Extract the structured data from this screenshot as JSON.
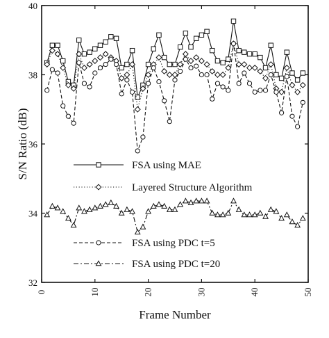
{
  "chart_data": {
    "type": "line",
    "xlabel": "Frame Number",
    "ylabel": "S/N Ratio (dB)",
    "xlim": [
      0,
      50
    ],
    "ylim": [
      32,
      40
    ],
    "x_ticks": [
      0,
      10,
      20,
      30,
      40,
      50
    ],
    "y_ticks": [
      32,
      34,
      36,
      38,
      40
    ],
    "legend_position": "lower-left (inside plot)",
    "grid": false,
    "series": [
      {
        "name": "FSA using MAE",
        "marker": "square",
        "style": "solid",
        "x": [
          1,
          2,
          3,
          4,
          5,
          6,
          7,
          8,
          9,
          10,
          11,
          12,
          13,
          14,
          15,
          16,
          17,
          18,
          19,
          20,
          21,
          22,
          23,
          24,
          25,
          26,
          27,
          28,
          29,
          30,
          31,
          32,
          33,
          34,
          35,
          36,
          37,
          38,
          39,
          40,
          41,
          42,
          43,
          44,
          45,
          46,
          47,
          48,
          49
        ],
        "values": [
          38.35,
          38.85,
          38.85,
          38.4,
          37.8,
          37.7,
          39.0,
          38.6,
          38.65,
          38.75,
          38.85,
          38.95,
          39.1,
          39.05,
          38.2,
          38.3,
          38.7,
          37.35,
          37.7,
          38.3,
          38.75,
          39.15,
          38.5,
          38.3,
          38.3,
          38.8,
          39.2,
          38.8,
          39.05,
          39.15,
          39.25,
          38.7,
          38.4,
          38.35,
          38.45,
          39.55,
          38.7,
          38.65,
          38.6,
          38.6,
          38.5,
          38.2,
          38.85,
          38.0,
          37.9,
          38.65,
          38.05,
          37.85,
          38.05
        ]
      },
      {
        "name": "Layered Structure Algorithm",
        "marker": "diamond",
        "style": "dotted",
        "x": [
          1,
          2,
          3,
          4,
          5,
          6,
          7,
          8,
          9,
          10,
          11,
          12,
          13,
          14,
          15,
          16,
          17,
          18,
          19,
          20,
          21,
          22,
          23,
          24,
          25,
          26,
          27,
          28,
          29,
          30,
          31,
          32,
          33,
          34,
          35,
          36,
          37,
          38,
          39,
          40,
          41,
          42,
          43,
          44,
          45,
          46,
          47,
          48,
          49
        ],
        "values": [
          38.3,
          38.7,
          38.6,
          38.2,
          37.7,
          37.6,
          38.6,
          38.2,
          38.3,
          38.4,
          38.5,
          38.6,
          38.5,
          38.4,
          37.9,
          38.0,
          38.3,
          37.0,
          37.6,
          38.0,
          38.3,
          38.5,
          38.1,
          38.0,
          38.0,
          38.3,
          38.6,
          38.4,
          38.5,
          38.4,
          38.3,
          38.1,
          38.0,
          38.0,
          38.2,
          38.9,
          38.3,
          38.3,
          38.2,
          38.2,
          38.1,
          37.9,
          38.3,
          37.6,
          37.5,
          38.2,
          37.7,
          37.5,
          37.7
        ]
      },
      {
        "name": "FSA using PDC t=5",
        "marker": "circle",
        "style": "dashed",
        "x": [
          1,
          2,
          3,
          4,
          5,
          6,
          7,
          8,
          9,
          10,
          11,
          12,
          13,
          14,
          15,
          16,
          17,
          18,
          19,
          20,
          21,
          22,
          23,
          24,
          25,
          26,
          27,
          28,
          29,
          30,
          31,
          32,
          33,
          34,
          35,
          36,
          37,
          38,
          39,
          40,
          41,
          42,
          43,
          44,
          45,
          46,
          47,
          48,
          49
        ],
        "values": [
          37.55,
          38.15,
          38.05,
          37.1,
          36.8,
          36.6,
          38.35,
          37.75,
          37.65,
          38.05,
          38.2,
          38.3,
          38.45,
          38.3,
          37.45,
          37.85,
          37.5,
          35.8,
          36.2,
          37.75,
          38.2,
          37.8,
          37.25,
          36.65,
          37.85,
          38.1,
          38.45,
          38.2,
          38.25,
          38.0,
          38.0,
          37.3,
          37.75,
          37.65,
          37.55,
          38.9,
          37.75,
          38.05,
          37.75,
          37.5,
          37.55,
          37.55,
          38.0,
          37.5,
          36.9,
          37.95,
          36.8,
          36.5,
          37.2
        ]
      },
      {
        "name": "FSA using PDC t=20",
        "marker": "triangle",
        "style": "dash-dot",
        "x": [
          1,
          2,
          3,
          4,
          5,
          6,
          7,
          8,
          9,
          10,
          11,
          12,
          13,
          14,
          15,
          16,
          17,
          18,
          19,
          20,
          21,
          22,
          23,
          24,
          25,
          26,
          27,
          28,
          29,
          30,
          31,
          32,
          33,
          34,
          35,
          36,
          37,
          38,
          39,
          40,
          41,
          42,
          43,
          44,
          45,
          46,
          47,
          48,
          49
        ],
        "values": [
          33.95,
          34.2,
          34.15,
          34.05,
          33.85,
          33.65,
          34.15,
          34.05,
          34.1,
          34.15,
          34.2,
          34.25,
          34.3,
          34.2,
          34.0,
          34.1,
          34.05,
          33.45,
          33.6,
          34.05,
          34.2,
          34.25,
          34.2,
          34.1,
          34.1,
          34.25,
          34.35,
          34.3,
          34.35,
          34.35,
          34.35,
          34.0,
          33.95,
          33.95,
          34.0,
          34.35,
          34.1,
          33.95,
          33.95,
          33.95,
          34.0,
          33.9,
          34.1,
          34.05,
          33.85,
          33.95,
          33.75,
          33.65,
          33.85
        ]
      }
    ]
  }
}
